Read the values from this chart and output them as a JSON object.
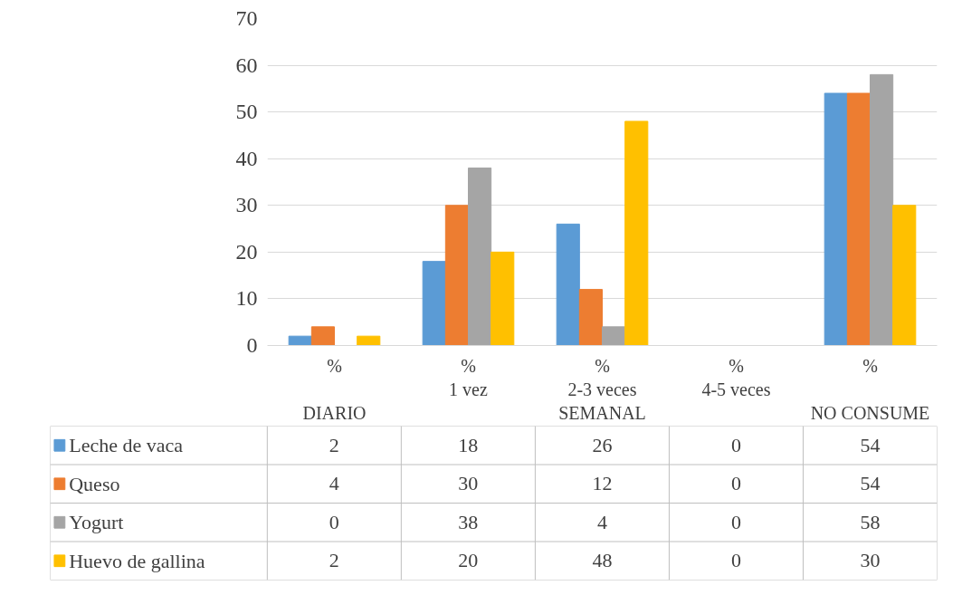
{
  "chart_data": {
    "type": "bar",
    "categories": [
      "%\n\nDIARIO",
      "%\n1 vez",
      "%\n2-3 veces\nSEMANAL",
      "%\n4-5 veces",
      "%\n\nNO CONSUME"
    ],
    "series": [
      {
        "name": "Leche de vaca",
        "color": "#5b9bd5",
        "values": [
          2,
          18,
          26,
          0,
          54
        ]
      },
      {
        "name": "Queso",
        "color": "#ed7d31",
        "values": [
          4,
          30,
          12,
          0,
          54
        ]
      },
      {
        "name": "Yogurt",
        "color": "#a5a5a5",
        "values": [
          0,
          38,
          4,
          0,
          58
        ]
      },
      {
        "name": "Huevo de gallina",
        "color": "#ffc000",
        "values": [
          2,
          20,
          48,
          0,
          30
        ]
      }
    ],
    "ylim": [
      0,
      70
    ],
    "yticks": [
      0,
      10,
      20,
      30,
      40,
      50,
      60,
      70
    ],
    "grid": "y",
    "data_labels": true,
    "legend": "bottom left"
  }
}
